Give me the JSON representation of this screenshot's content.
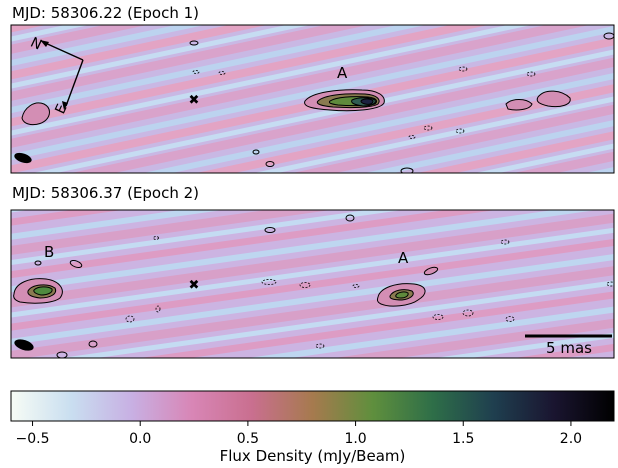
{
  "panels": [
    {
      "title": "MJD: 58306.22 (Epoch 1)",
      "components": [
        {
          "label": "A"
        }
      ],
      "compass": {
        "north": "N",
        "east": "E"
      }
    },
    {
      "title": "MJD: 58306.37 (Epoch 2)",
      "components": [
        {
          "label": "B"
        },
        {
          "label": "A"
        }
      ],
      "scalebar": {
        "label": "5 mas"
      }
    }
  ],
  "colorbar": {
    "label": "Flux Density (mJy/Beam)",
    "range": [
      -0.6,
      2.2
    ],
    "ticks": [
      "−0.5",
      "0.0",
      "0.5",
      "1.0",
      "1.5",
      "2.0"
    ],
    "tick_values": [
      -0.5,
      0.0,
      0.5,
      1.0,
      1.5,
      2.0
    ],
    "colormap": [
      "#f7fcf5",
      "#c9def0",
      "#c8b0e3",
      "#d886b6",
      "#c96f8f",
      "#a67a4e",
      "#5f8f3d",
      "#2e6e48",
      "#1f3f4f",
      "#1a1530",
      "#000000"
    ]
  },
  "chart_data": {
    "type": "heatmap",
    "title": "",
    "colorbar_label": "Flux Density (mJy/Beam)",
    "colorbar_range": [
      -0.6,
      2.2
    ],
    "colorbar_ticks": [
      -0.5,
      0.0,
      0.5,
      1.0,
      1.5,
      2.0
    ],
    "images": [
      {
        "title": "MJD: 58306.22 (Epoch 1)",
        "components": [
          "A"
        ]
      },
      {
        "title": "MJD: 58306.37 (Epoch 2)",
        "components": [
          "B",
          "A"
        ],
        "scalebar": "5 mas"
      }
    ]
  }
}
